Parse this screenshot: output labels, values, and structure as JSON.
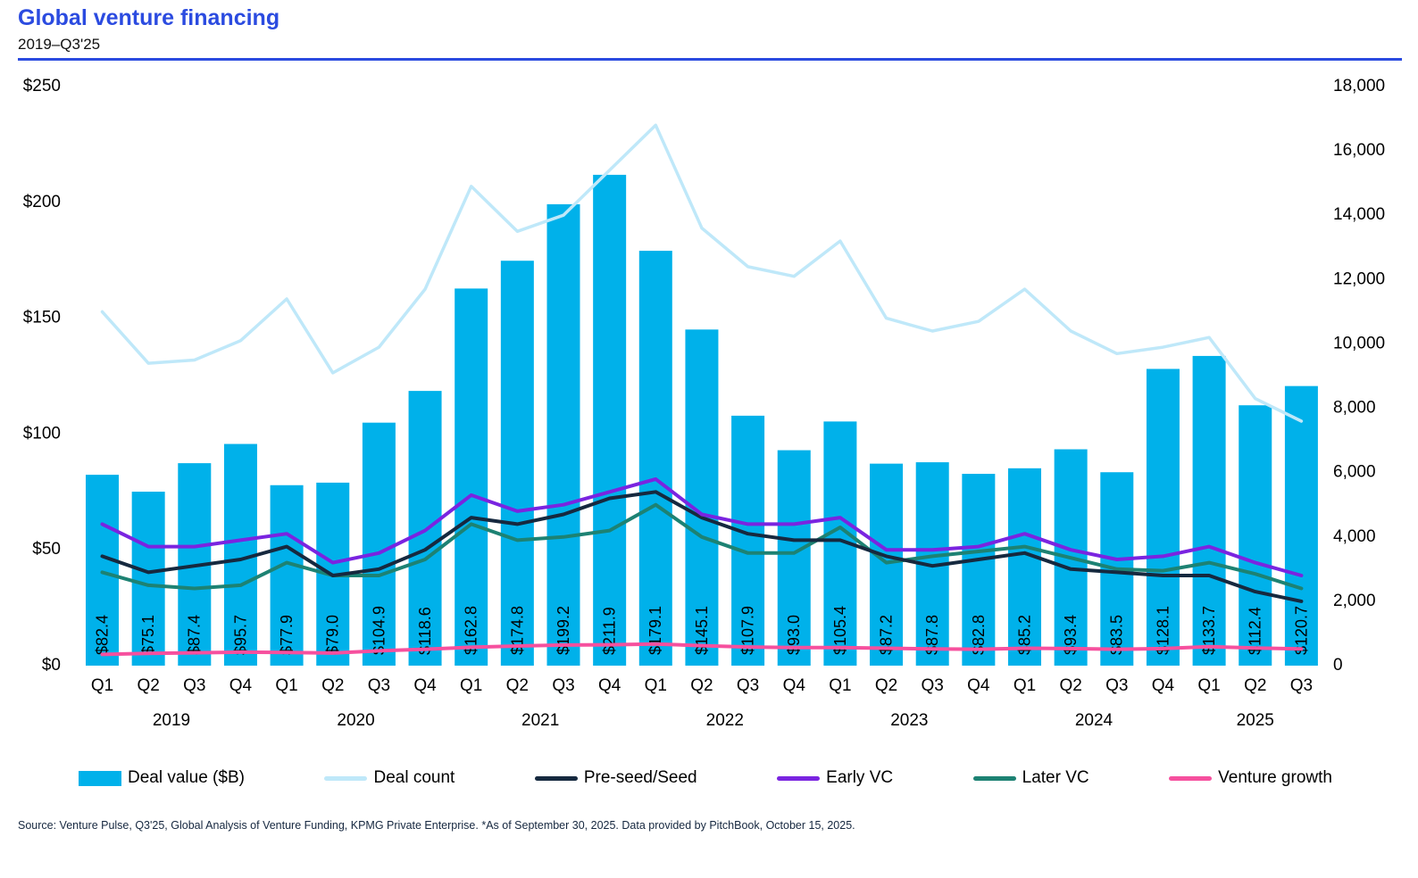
{
  "header": {
    "title": "Global venture financing",
    "subtitle": "2019–Q3'25",
    "accent_color": "#2b4be0"
  },
  "chart_data": {
    "type": "bar",
    "subtype": "combo-bar-line-dual-axis",
    "quarter_labels": [
      "Q1",
      "Q2",
      "Q3",
      "Q4",
      "Q1",
      "Q2",
      "Q3",
      "Q4",
      "Q1",
      "Q2",
      "Q3",
      "Q4",
      "Q1",
      "Q2",
      "Q3",
      "Q4",
      "Q1",
      "Q2",
      "Q3",
      "Q4",
      "Q1",
      "Q2",
      "Q3",
      "Q4",
      "Q1",
      "Q2",
      "Q3"
    ],
    "years": [
      {
        "label": "2019",
        "quarters": 4
      },
      {
        "label": "2020",
        "quarters": 4
      },
      {
        "label": "2021",
        "quarters": 4
      },
      {
        "label": "2022",
        "quarters": 4
      },
      {
        "label": "2023",
        "quarters": 4
      },
      {
        "label": "2024",
        "quarters": 4
      },
      {
        "label": "2025",
        "quarters": 3
      }
    ],
    "left_axis": {
      "min": 0,
      "max": 250,
      "step": 50,
      "tick_labels": [
        "$0",
        "$50",
        "$100",
        "$150",
        "$200",
        "$250"
      ],
      "applies_to": "Deal value ($B)"
    },
    "right_axis": {
      "min": 0,
      "max": 18000,
      "step": 2000,
      "tick_labels": [
        "0",
        "2,000",
        "4,000",
        "6,000",
        "8,000",
        "10,000",
        "12,000",
        "14,000",
        "16,000",
        "18,000"
      ],
      "applies_to": "Deal count"
    },
    "grid": false,
    "legend_position": "bottom",
    "bar_series": {
      "name": "Deal value ($B)",
      "color": "#00b1ea",
      "axis": "left",
      "values": [
        82.4,
        75.1,
        87.4,
        95.7,
        77.9,
        79.0,
        104.9,
        118.6,
        162.8,
        174.8,
        199.2,
        211.9,
        179.1,
        145.1,
        107.9,
        93.0,
        105.4,
        87.2,
        87.8,
        82.8,
        85.2,
        93.4,
        83.5,
        128.1,
        133.7,
        112.4,
        120.7
      ],
      "labels": [
        "$82.4",
        "$75.1",
        "$87.4",
        "$95.7",
        "$77.9",
        "$79.0",
        "$104.9",
        "$118.6",
        "$162.8",
        "$174.8",
        "$199.2",
        "$211.9",
        "$179.1",
        "$145.1",
        "$107.9",
        "$93.0",
        "$105.4",
        "$87.2",
        "$87.8",
        "$82.8",
        "$85.2",
        "$93.4",
        "$83.5",
        "$128.1",
        "$133.7",
        "$112.4",
        "$120.7"
      ]
    },
    "line_series": [
      {
        "name": "Deal count",
        "color": "#bfe8f9",
        "axis": "right",
        "width": 3.5,
        "values": [
          11000,
          9400,
          9500,
          10100,
          11400,
          9100,
          9900,
          11700,
          14900,
          13500,
          14000,
          15400,
          16800,
          13600,
          12400,
          12100,
          13200,
          10800,
          10400,
          10700,
          11700,
          10400,
          9700,
          9900,
          10200,
          8300,
          7600
        ]
      },
      {
        "name": "Later VC",
        "color": "#1d8273",
        "axis": "right",
        "width": 4,
        "values": [
          2900,
          2500,
          2400,
          2500,
          3200,
          2800,
          2800,
          3300,
          4400,
          3900,
          4000,
          4200,
          5000,
          4000,
          3500,
          3500,
          4300,
          3200,
          3400,
          3550,
          3700,
          3350,
          3000,
          2950,
          3200,
          2850,
          2400
        ]
      },
      {
        "name": "Pre-seed/Seed",
        "color": "#16293f",
        "axis": "right",
        "width": 4,
        "values": [
          3400,
          2900,
          3100,
          3300,
          3700,
          2800,
          3000,
          3600,
          4600,
          4400,
          4700,
          5200,
          5400,
          4600,
          4100,
          3900,
          3900,
          3400,
          3100,
          3300,
          3500,
          3000,
          2900,
          2800,
          2800,
          2300,
          2000
        ]
      },
      {
        "name": "Early VC",
        "color": "#7a24e0",
        "axis": "right",
        "width": 4,
        "values": [
          4400,
          3700,
          3700,
          3900,
          4100,
          3200,
          3500,
          4200,
          5300,
          4800,
          5000,
          5400,
          5800,
          4700,
          4400,
          4400,
          4600,
          3600,
          3600,
          3700,
          4100,
          3600,
          3300,
          3400,
          3700,
          3200,
          2800
        ]
      },
      {
        "name": "Venture growth",
        "color": "#f6509e",
        "axis": "right",
        "width": 4,
        "values": [
          350,
          380,
          400,
          420,
          410,
          390,
          460,
          510,
          570,
          610,
          640,
          650,
          670,
          620,
          580,
          560,
          560,
          540,
          520,
          510,
          540,
          530,
          510,
          530,
          590,
          550,
          520
        ]
      }
    ],
    "title": "Global venture financing",
    "subtitle": "2019–Q3'25"
  },
  "legend": {
    "items": [
      {
        "label": "Deal value ($B)",
        "color": "#00b1ea",
        "type": "bar"
      },
      {
        "label": "Deal count",
        "color": "#bfe8f9",
        "type": "line"
      },
      {
        "label": "Pre-seed/Seed",
        "color": "#16293f",
        "type": "line"
      },
      {
        "label": "Early VC",
        "color": "#7a24e0",
        "type": "line"
      },
      {
        "label": "Later VC",
        "color": "#1d8273",
        "type": "line"
      },
      {
        "label": "Venture growth",
        "color": "#f6509e",
        "type": "line"
      }
    ]
  },
  "footer": {
    "source": "Source: Venture Pulse, Q3'25, Global Analysis of Venture Funding, KPMG Private Enterprise. *As of September 30, 2025. Data provided by PitchBook, October 15, 2025."
  }
}
